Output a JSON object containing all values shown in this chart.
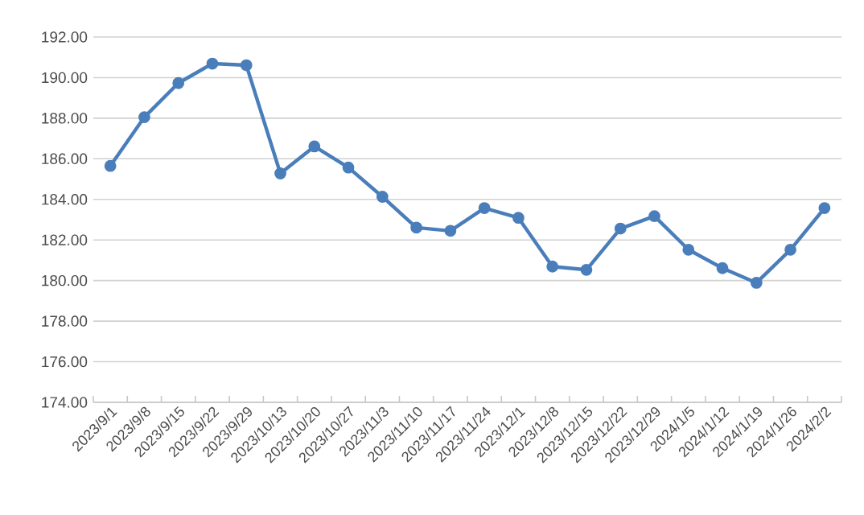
{
  "chart_data": {
    "type": "line",
    "categories": [
      "2023/9/1",
      "2023/9/8",
      "2023/9/15",
      "2023/9/22",
      "2023/9/29",
      "2023/10/13",
      "2023/10/20",
      "2023/10/27",
      "2023/11/3",
      "2023/11/10",
      "2023/11/17",
      "2023/11/24",
      "2023/12/1",
      "2023/12/8",
      "2023/12/15",
      "2023/12/22",
      "2023/12/29",
      "2024/1/5",
      "2024/1/12",
      "2024/1/19",
      "2024/1/26",
      "2024/2/2"
    ],
    "series": [
      {
        "color": "#4a7ebb",
        "values": [
          185.65,
          188.05,
          189.73,
          190.69,
          190.61,
          185.28,
          186.61,
          185.57,
          184.13,
          182.61,
          182.45,
          183.57,
          183.09,
          180.69,
          180.53,
          182.56,
          183.17,
          181.52,
          180.61,
          179.89,
          181.52,
          183.57
        ]
      }
    ],
    "ylim": [
      174,
      192
    ],
    "yticks": [
      {
        "value": 174,
        "label": "174.00"
      },
      {
        "value": 176,
        "label": "176.00"
      },
      {
        "value": 178,
        "label": "178.00"
      },
      {
        "value": 180,
        "label": "180.00"
      },
      {
        "value": 182,
        "label": "182.00"
      },
      {
        "value": 184,
        "label": "184.00"
      },
      {
        "value": 186,
        "label": "186.00"
      },
      {
        "value": 188,
        "label": "188.00"
      },
      {
        "value": 190,
        "label": "190.00"
      },
      {
        "value": 192,
        "label": "192.00"
      }
    ],
    "grid": "y",
    "marker": "circle",
    "line_style": "solid"
  }
}
